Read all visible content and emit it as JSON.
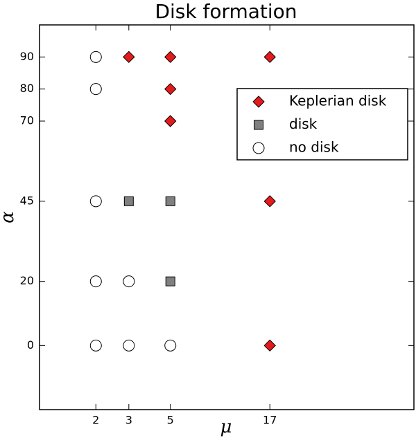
{
  "chart_data": {
    "type": "scatter",
    "title": "Disk formation",
    "x_label": "μ",
    "y_label": "α",
    "xscale": "log",
    "xlim": [
      1,
      100
    ],
    "ylim": [
      -20,
      100
    ],
    "xticks": [
      2,
      3,
      5,
      17
    ],
    "yticks": [
      0,
      20,
      45,
      70,
      80,
      90
    ],
    "legend": "upper right",
    "series": [
      {
        "name": "Keplerian disk",
        "color": "#e41a1c",
        "marker": "diamond",
        "x": [
          3,
          5,
          17,
          5,
          5,
          17,
          17
        ],
        "y": [
          90,
          90,
          90,
          80,
          70,
          45,
          0
        ]
      },
      {
        "name": "disk",
        "color": "#808080",
        "marker": "square",
        "x": [
          3,
          5,
          5
        ],
        "y": [
          45,
          45,
          20
        ]
      },
      {
        "name": "no disk",
        "color": "#ffffff",
        "marker": "circle",
        "x": [
          2,
          2,
          2,
          2,
          3,
          2,
          3,
          5
        ],
        "y": [
          90,
          80,
          45,
          20,
          20,
          0,
          0,
          0
        ]
      }
    ]
  }
}
